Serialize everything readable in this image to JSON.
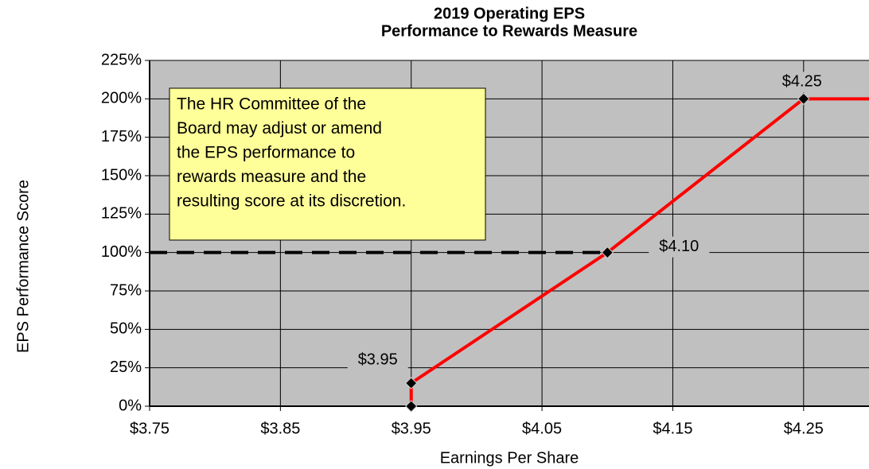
{
  "chart_data": {
    "type": "line",
    "title": [
      "2019 Operating EPS",
      "Performance to Rewards Measure"
    ],
    "x_label": "Earnings Per Share",
    "y_label": "EPS Performance Score",
    "annotation": [
      "The HR Committee of the",
      "Board may adjust or amend",
      "the EPS performance to",
      "rewards measure and the",
      "resulting score at its discretion."
    ],
    "xlim": [
      3.75,
      4.3
    ],
    "ylim": [
      0,
      225
    ],
    "xticks": [
      {
        "value": 3.75,
        "label": "$3.75"
      },
      {
        "value": 3.85,
        "label": "$3.85"
      },
      {
        "value": 3.95,
        "label": "$3.95"
      },
      {
        "value": 4.05,
        "label": "$4.05"
      },
      {
        "value": 4.15,
        "label": "$4.15"
      },
      {
        "value": 4.25,
        "label": "$4.25"
      }
    ],
    "yticks": [
      {
        "value": 0,
        "label": "0%"
      },
      {
        "value": 25,
        "label": "25%"
      },
      {
        "value": 50,
        "label": "50%"
      },
      {
        "value": 75,
        "label": "75%"
      },
      {
        "value": 100,
        "label": "100%"
      },
      {
        "value": 125,
        "label": "125%"
      },
      {
        "value": 150,
        "label": "150%"
      },
      {
        "value": 175,
        "label": "175%"
      },
      {
        "value": 200,
        "label": "200%"
      },
      {
        "value": 225,
        "label": "225%"
      }
    ],
    "grid": true,
    "background": "#c0c0c0",
    "series": [
      {
        "color": "#ff0000",
        "style": "solid",
        "x": [
          3.95,
          3.95,
          4.1,
          4.25,
          4.3
        ],
        "values": [
          0,
          15,
          100,
          200,
          200
        ],
        "markers": [
          true,
          true,
          true,
          true,
          false
        ],
        "point_labels": [
          null,
          "$3.95",
          "$4.10",
          "$4.25",
          null
        ]
      },
      {
        "color": "#000000",
        "style": "dashed",
        "x": [
          3.75,
          4.1
        ],
        "values": [
          100,
          100
        ]
      }
    ]
  }
}
